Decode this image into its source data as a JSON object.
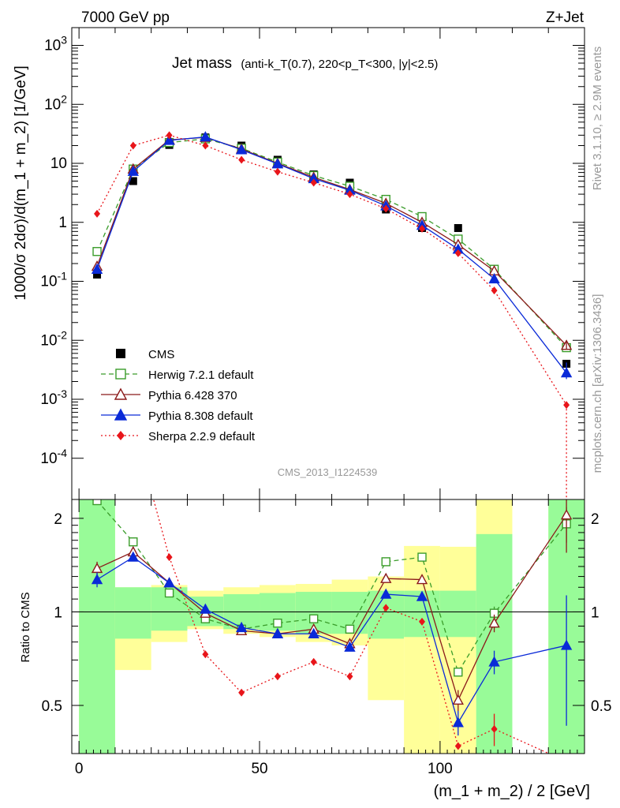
{
  "header": {
    "left": "7000 GeV pp",
    "right": "Z+Jet",
    "title_main": "Jet mass",
    "title_detail": "(anti-k_T(0.7), 220<p_T<300, |y|<2.5)",
    "analysis_id": "CMS_2013_I1224539",
    "side_rivet": "Rivet 3.1.10, ≥ 2.9M events",
    "side_site": "mcplots.cern.ch [arXiv:1306.3436]"
  },
  "chart_data": [
    {
      "type": "line",
      "panel": "main",
      "ylabel": "1000/σ 2dσ)/d(m_1 + m_2) [1/GeV]",
      "yscale": "log",
      "ylim": [
        2e-05,
        2000
      ],
      "xlim": [
        -2,
        140
      ],
      "yticks": [
        "10^{-4}",
        "10^{-3}",
        "10^{-2}",
        "10^{-1}",
        "1",
        "10",
        "10^{2}",
        "10^{3}"
      ],
      "x": [
        5,
        15,
        25,
        35,
        45,
        55,
        65,
        75,
        85,
        95,
        105,
        115,
        135
      ],
      "series": [
        {
          "name": "CMS",
          "color": "#000000",
          "marker": "square-filled",
          "style": "none",
          "values": [
            0.13,
            5.0,
            20.5,
            27.5,
            20.0,
            11.5,
            6.5,
            4.7,
            1.65,
            0.8,
            0.8,
            0.16,
            0.004
          ]
        },
        {
          "name": "Herwig 7.2.1 default",
          "color": "#3a9c2a",
          "marker": "square-open",
          "style": "dashed",
          "values": [
            0.32,
            8.0,
            22.5,
            26.0,
            18.0,
            10.5,
            6.2,
            4.1,
            2.45,
            1.25,
            0.52,
            0.16,
            0.0075
          ]
        },
        {
          "name": "Pythia 6.428 370",
          "color": "#8b1a1a",
          "marker": "triangle-open",
          "style": "solid",
          "values": [
            0.18,
            8.0,
            25.0,
            27.5,
            17.5,
            10.0,
            5.8,
            3.6,
            2.1,
            1.0,
            0.42,
            0.15,
            0.0082
          ]
        },
        {
          "name": "Pythia 8.308 default",
          "color": "#0a2ad8",
          "marker": "triangle-filled",
          "style": "solid",
          "values": [
            0.16,
            7.3,
            24.5,
            28.0,
            17.0,
            9.8,
            5.5,
            3.5,
            1.9,
            0.89,
            0.35,
            0.11,
            0.0028
          ]
        },
        {
          "name": "Sherpa 2.2.9 default",
          "color": "#e8151a",
          "marker": "diamond-filled",
          "style": "dotted",
          "values": [
            1.4,
            20.0,
            30.0,
            20.0,
            11.5,
            7.2,
            4.7,
            3.0,
            1.7,
            0.78,
            0.3,
            0.07,
            0.0008
          ]
        }
      ]
    },
    {
      "type": "line",
      "panel": "ratio",
      "ylabel": "Ratio to CMS",
      "ylim": [
        0.35,
        2.3
      ],
      "xlim": [
        -2,
        140
      ],
      "xlabel": "(m_1 + m_2) / 2 [GeV]",
      "xticks": [
        0,
        50,
        100
      ],
      "yticks": [
        0.5,
        1,
        2
      ],
      "reference": 1,
      "bands": [
        {
          "x0": 0,
          "x1": 10,
          "yellow": [
            0.35,
            2.3
          ],
          "green": [
            0.35,
            2.3
          ]
        },
        {
          "x0": 10,
          "x1": 20,
          "yellow": [
            0.65,
            1.2
          ],
          "green": [
            0.82,
            1.2
          ]
        },
        {
          "x0": 20,
          "x1": 30,
          "yellow": [
            0.8,
            1.22
          ],
          "green": [
            0.87,
            1.2
          ]
        },
        {
          "x0": 30,
          "x1": 40,
          "yellow": [
            0.88,
            1.17
          ],
          "green": [
            0.9,
            1.12
          ]
        },
        {
          "x0": 40,
          "x1": 50,
          "yellow": [
            0.85,
            1.2
          ],
          "green": [
            0.88,
            1.14
          ]
        },
        {
          "x0": 50,
          "x1": 60,
          "yellow": [
            0.83,
            1.22
          ],
          "green": [
            0.87,
            1.15
          ]
        },
        {
          "x0": 60,
          "x1": 70,
          "yellow": [
            0.8,
            1.23
          ],
          "green": [
            0.85,
            1.16
          ]
        },
        {
          "x0": 70,
          "x1": 80,
          "yellow": [
            0.78,
            1.27
          ],
          "green": [
            0.85,
            1.16
          ]
        },
        {
          "x0": 80,
          "x1": 90,
          "yellow": [
            0.52,
            1.3
          ],
          "green": [
            0.82,
            1.17
          ]
        },
        {
          "x0": 90,
          "x1": 100,
          "yellow": [
            0.35,
            1.63
          ],
          "green": [
            0.83,
            1.17
          ]
        },
        {
          "x0": 100,
          "x1": 110,
          "yellow": [
            0.35,
            1.62
          ],
          "green": [
            0.83,
            1.17
          ]
        },
        {
          "x0": 110,
          "x1": 120,
          "yellow": [
            0.35,
            2.3
          ],
          "green": [
            0.35,
            1.78
          ]
        },
        {
          "x0": 130,
          "x1": 140,
          "yellow": [
            0.35,
            2.3
          ],
          "green": [
            0.35,
            2.3
          ]
        }
      ],
      "x": [
        5,
        15,
        25,
        35,
        45,
        55,
        65,
        75,
        85,
        95,
        105,
        115,
        135
      ],
      "series": [
        {
          "name": "Herwig 7.2.1 default",
          "color": "#3a9c2a",
          "marker": "square-open",
          "style": "dashed",
          "values": [
            2.28,
            1.68,
            1.15,
            0.95,
            0.88,
            0.92,
            0.95,
            0.88,
            1.45,
            1.5,
            0.64,
            0.99,
            1.92
          ],
          "err": [
            0.06,
            0.04,
            0,
            0,
            0,
            0,
            0,
            0,
            0,
            0,
            0,
            0.05,
            0.25
          ]
        },
        {
          "name": "Pythia 6.428 370",
          "color": "#8b1a1a",
          "marker": "triangle-open",
          "style": "solid",
          "values": [
            1.38,
            1.56,
            1.24,
            0.99,
            0.87,
            0.85,
            0.88,
            0.79,
            1.28,
            1.27,
            0.52,
            0.92,
            2.05
          ],
          "err": [
            0.07,
            0.03,
            0,
            0,
            0,
            0,
            0,
            0,
            0,
            0,
            0.04,
            0.06,
            0.5
          ]
        },
        {
          "name": "Pythia 8.308 default",
          "color": "#0a2ad8",
          "marker": "triangle-filled",
          "style": "solid",
          "values": [
            1.27,
            1.5,
            1.24,
            1.02,
            0.89,
            0.85,
            0.85,
            0.77,
            1.14,
            1.12,
            0.44,
            0.69,
            0.78
          ],
          "err": [
            0.07,
            0.03,
            0,
            0,
            0,
            0,
            0,
            0,
            0,
            0,
            0.04,
            0.06,
            0.35
          ]
        },
        {
          "name": "Sherpa 2.2.9 default",
          "color": "#e8151a",
          "marker": "diamond-filled",
          "style": "dotted",
          "values": [
            null,
            4.0,
            1.5,
            0.73,
            0.55,
            0.62,
            0.69,
            0.62,
            1.03,
            0.93,
            0.37,
            0.42,
            null
          ],
          "err": [
            0,
            0,
            0,
            0,
            0,
            0,
            0,
            0,
            0,
            0,
            0,
            0.05,
            0
          ],
          "offscale": [
            {
              "x": 5,
              "dir": "up"
            },
            {
              "x": 135,
              "dir": "down"
            }
          ]
        }
      ]
    }
  ]
}
